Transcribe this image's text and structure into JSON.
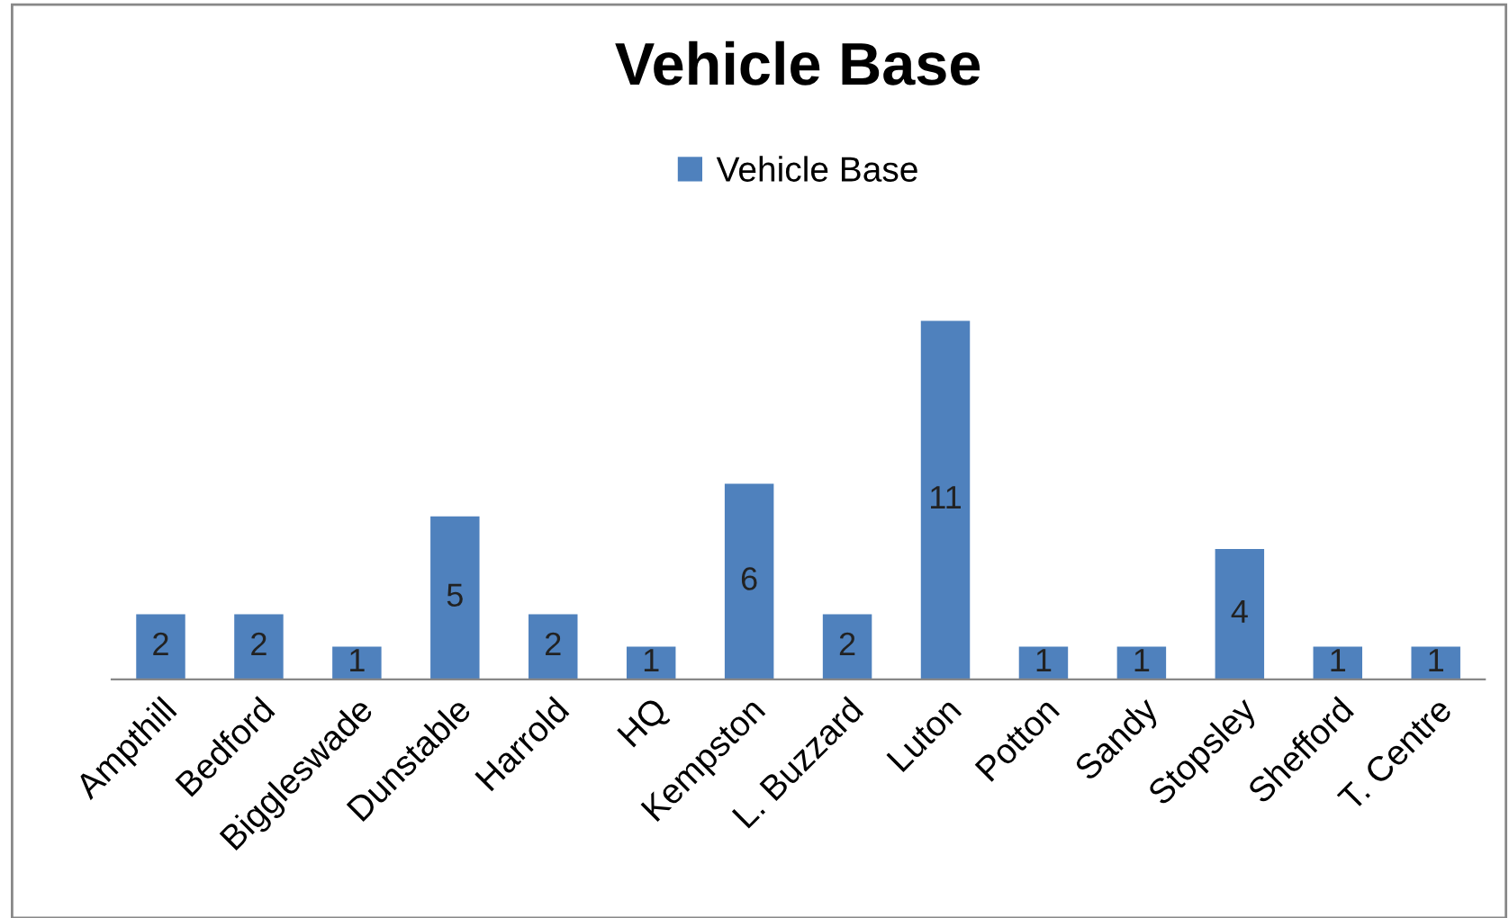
{
  "chart_data": {
    "type": "bar",
    "title": "Vehicle Base",
    "categories": [
      "Ampthill",
      "Bedford",
      "Biggleswade",
      "Dunstable",
      "Harrold",
      "HQ",
      "Kempston",
      "L. Buzzard",
      "Luton",
      "Potton",
      "Sandy",
      "Stopsley",
      "Shefford",
      "T. Centre"
    ],
    "series": [
      {
        "name": "Vehicle Base",
        "color": "#4f81bd",
        "values": [
          2,
          2,
          1,
          5,
          2,
          1,
          6,
          2,
          11,
          1,
          1,
          4,
          1,
          1
        ]
      }
    ],
    "data_labels": true,
    "legend": "top",
    "grid": false
  }
}
